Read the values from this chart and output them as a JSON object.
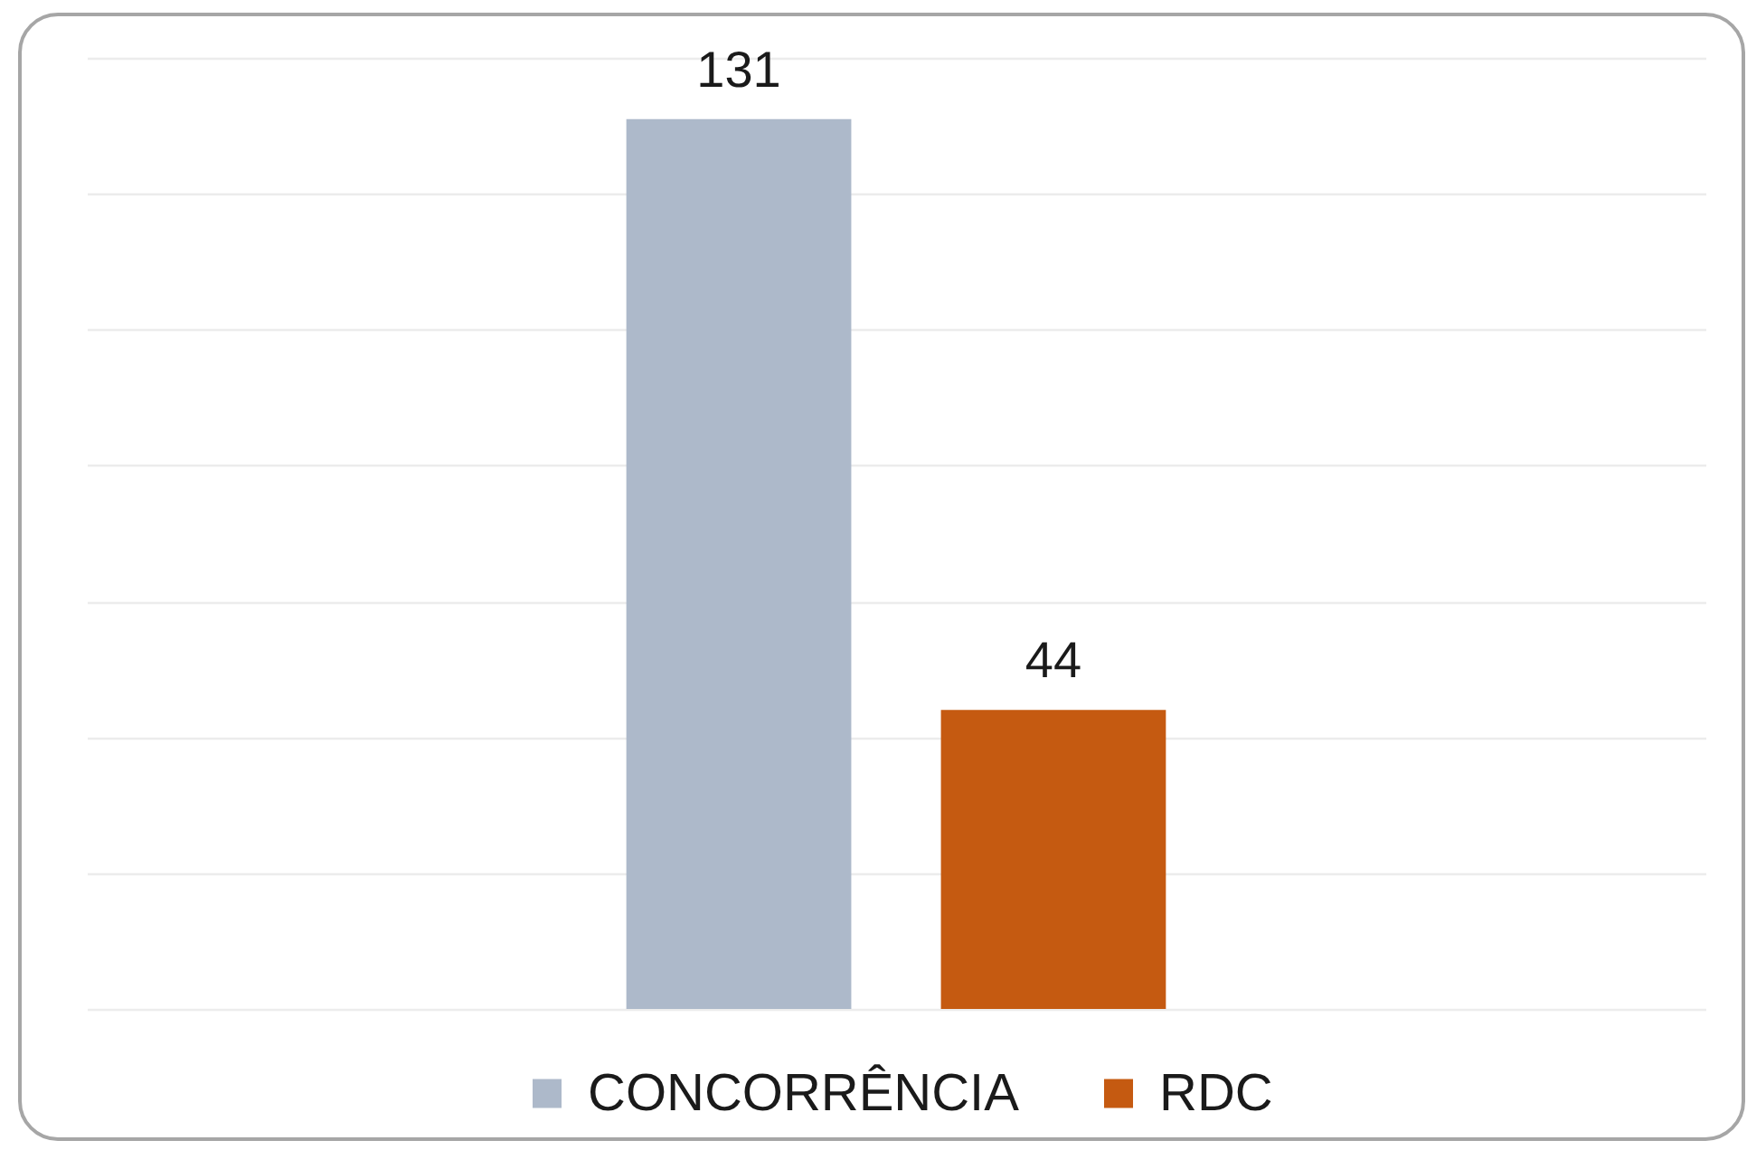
{
  "chart_data": {
    "type": "bar",
    "categories": [
      null
    ],
    "series": [
      {
        "name": "CONCORRÊNCIA",
        "color": "#adb9ca",
        "values": [
          131
        ]
      },
      {
        "name": "RDC",
        "color": "#c55a11",
        "values": [
          44
        ]
      }
    ],
    "ylim": [
      0,
      140
    ],
    "yticks": [
      {
        "value": 0,
        "label": null
      },
      {
        "value": 20,
        "label": null
      },
      {
        "value": 40,
        "label": null
      },
      {
        "value": 60,
        "label": null
      },
      {
        "value": 80,
        "label": null
      },
      {
        "value": 100,
        "label": null
      },
      {
        "value": 120,
        "label": null
      },
      {
        "value": 140,
        "label": null
      }
    ],
    "grid": "y",
    "tick_labels": false,
    "data_labels": true,
    "legend": "bottom"
  }
}
